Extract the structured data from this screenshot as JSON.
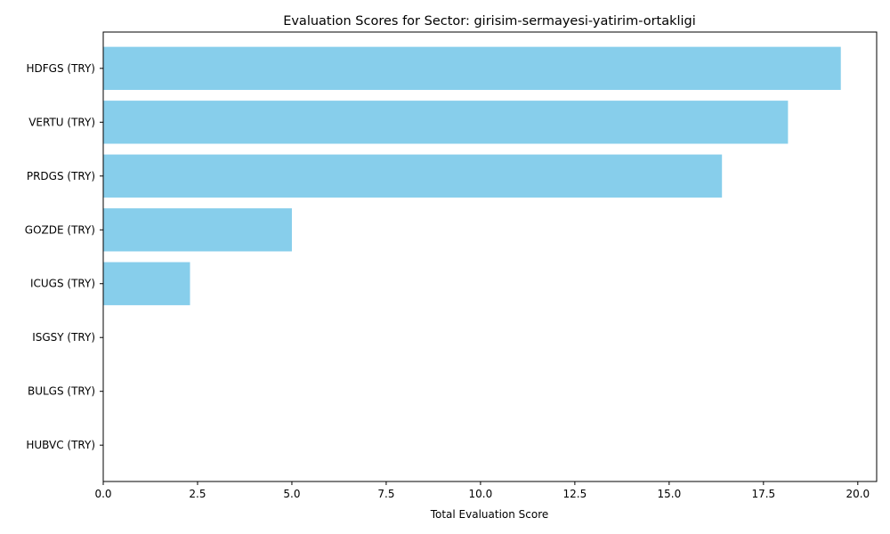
{
  "chart_data": {
    "type": "bar",
    "orientation": "horizontal",
    "title": "Evaluation Scores for Sector: girisim-sermayesi-yatirim-ortakligi",
    "xlabel": "Total Evaluation Score",
    "ylabel": "",
    "categories": [
      "HDFGS (TRY)",
      "VERTU (TRY)",
      "PRDGS (TRY)",
      "GOZDE (TRY)",
      "ICUGS (TRY)",
      "ISGSY (TRY)",
      "BULGS (TRY)",
      "HUBVC (TRY)"
    ],
    "values": [
      19.55,
      18.15,
      16.4,
      5.0,
      2.3,
      0,
      0,
      0
    ],
    "xlim": [
      0,
      20.5
    ],
    "xticks": [
      0.0,
      2.5,
      5.0,
      7.5,
      10.0,
      12.5,
      15.0,
      17.5,
      20.0
    ],
    "xtick_labels": [
      "0.0",
      "2.5",
      "5.0",
      "7.5",
      "10.0",
      "12.5",
      "15.0",
      "17.5",
      "20.0"
    ],
    "grid": false,
    "bar_color": "#87ceeb"
  }
}
